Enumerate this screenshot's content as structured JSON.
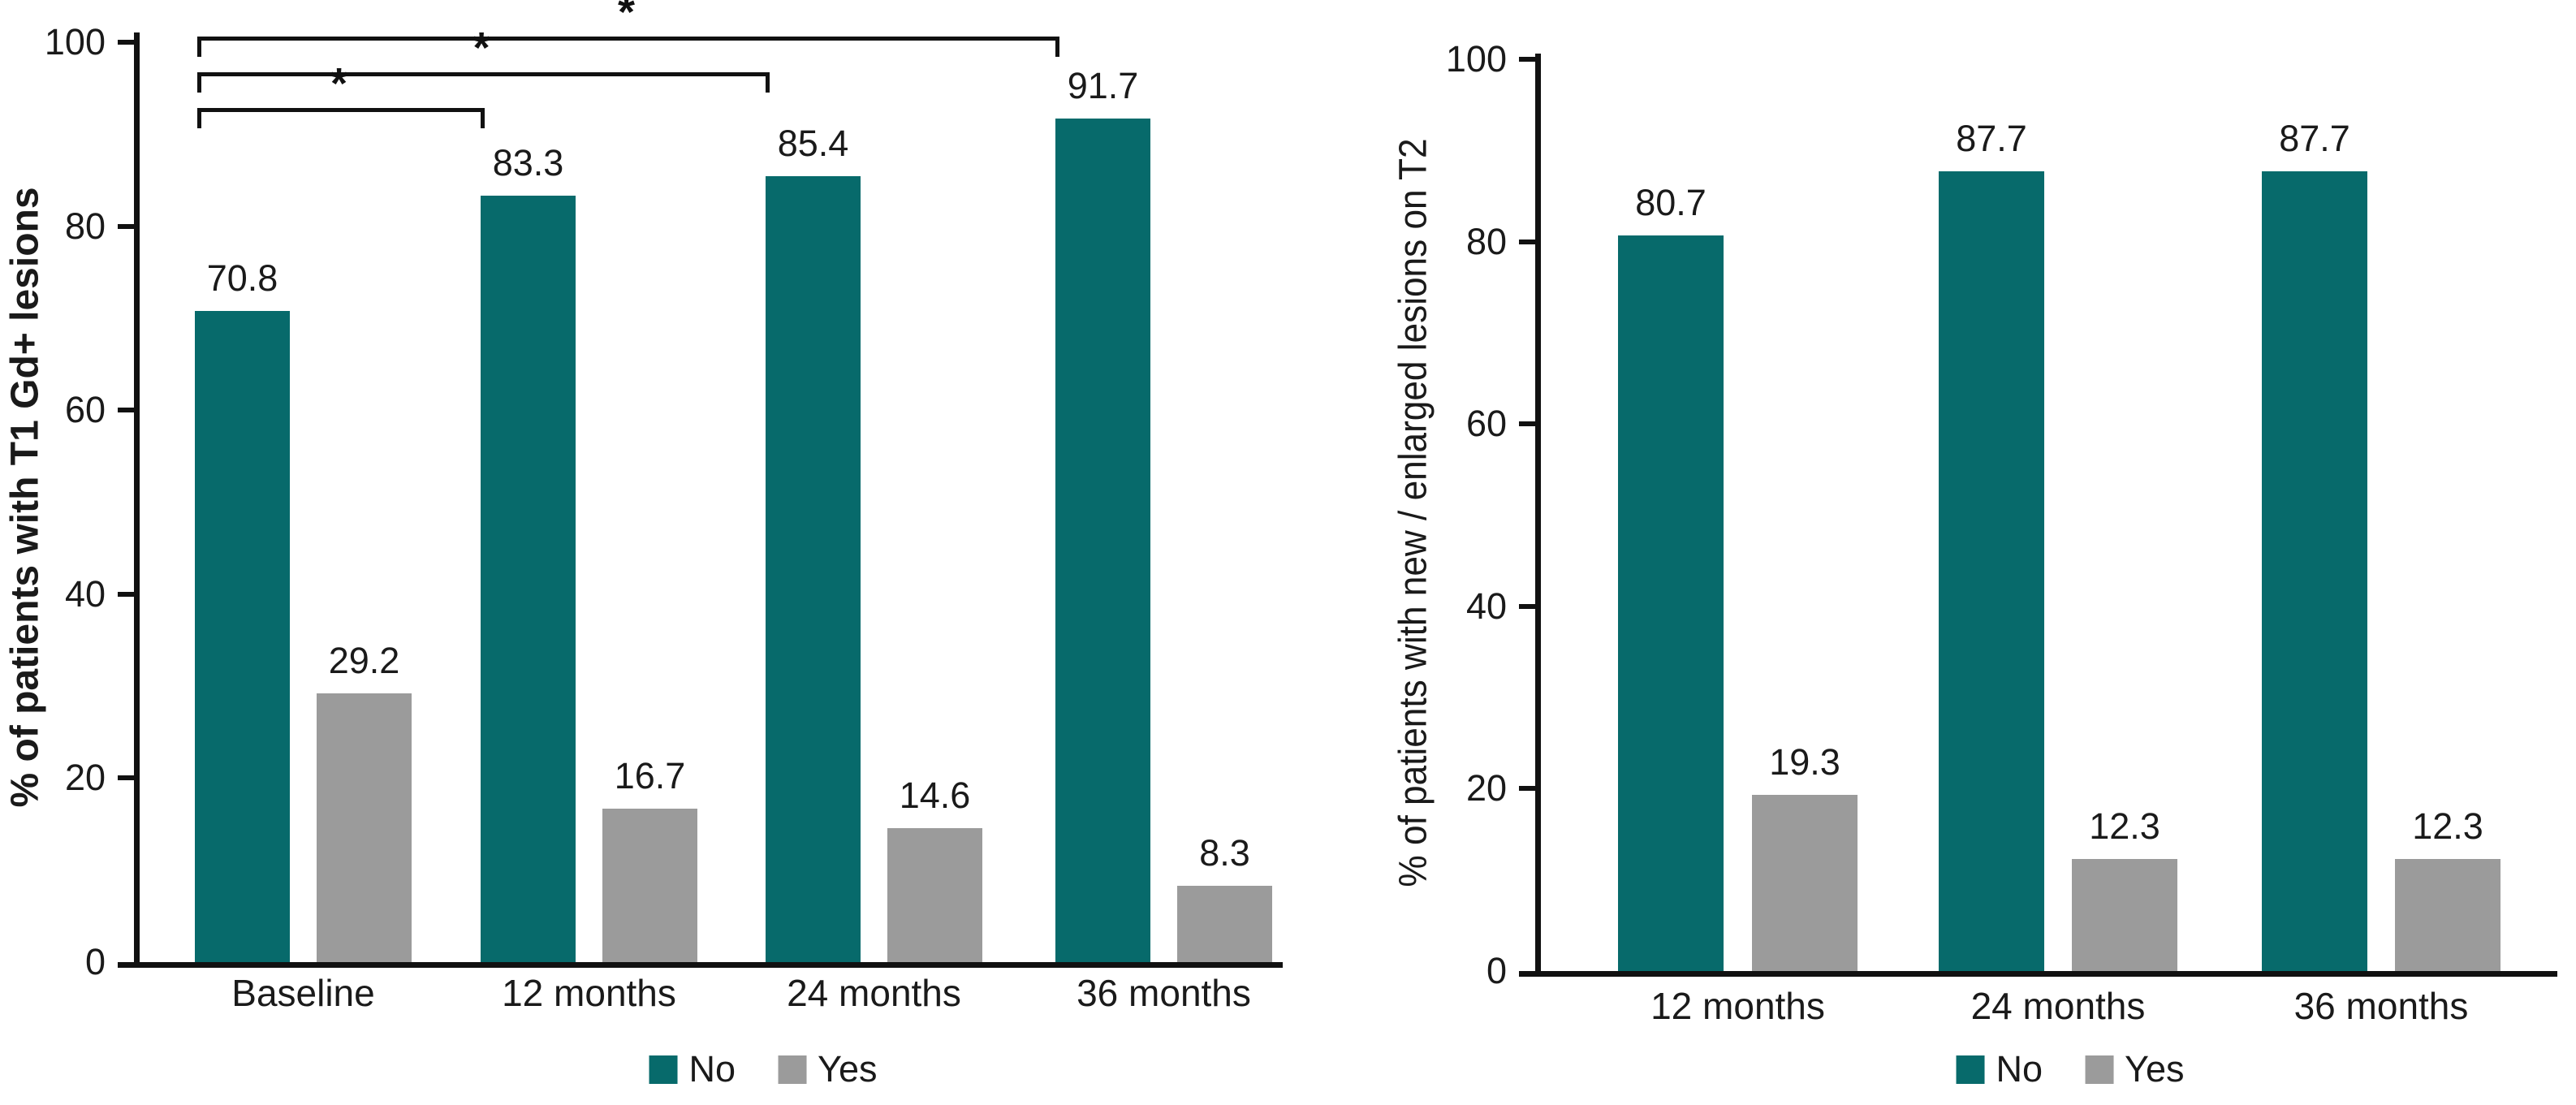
{
  "figure": {
    "background": "#ffffff",
    "colors": {
      "no_bar": "#076a6b",
      "yes_bar": "#9b9b9b",
      "axis": "#111111",
      "text": "#1a1a1a"
    }
  },
  "chart_data": [
    {
      "type": "bar",
      "title": "",
      "ylabel": "% of patients with T1 Gd+ lesions",
      "xlabel": "",
      "categories": [
        "Baseline",
        "12 months",
        "24 months",
        "36 months"
      ],
      "series": [
        {
          "name": "No",
          "color": "#076a6b",
          "values": [
            70.8,
            83.3,
            85.4,
            91.7
          ]
        },
        {
          "name": "Yes",
          "color": "#9b9b9b",
          "values": [
            29.2,
            16.7,
            14.6,
            8.3
          ]
        }
      ],
      "ylim": [
        0,
        100
      ],
      "yticks": [
        0,
        20,
        40,
        60,
        80,
        100
      ],
      "grid": false,
      "legend_position": "bottom",
      "annotations": {
        "significance_brackets": [
          {
            "from": "Baseline",
            "to": "12 months",
            "label": "*"
          },
          {
            "from": "Baseline",
            "to": "24 months",
            "label": "*"
          },
          {
            "from": "Baseline",
            "to": "36 months",
            "label": "*"
          }
        ]
      }
    },
    {
      "type": "bar",
      "title": "",
      "ylabel": "% of patients with new / enlarged lesions on T2",
      "xlabel": "",
      "categories": [
        "12 months",
        "24 months",
        "36 months"
      ],
      "series": [
        {
          "name": "No",
          "color": "#076a6b",
          "values": [
            80.7,
            87.7,
            87.7
          ]
        },
        {
          "name": "Yes",
          "color": "#9b9b9b",
          "values": [
            19.3,
            12.3,
            12.3
          ]
        }
      ],
      "ylim": [
        0,
        100
      ],
      "yticks": [
        0,
        20,
        40,
        60,
        80,
        100
      ],
      "grid": false,
      "legend_position": "bottom"
    }
  ]
}
